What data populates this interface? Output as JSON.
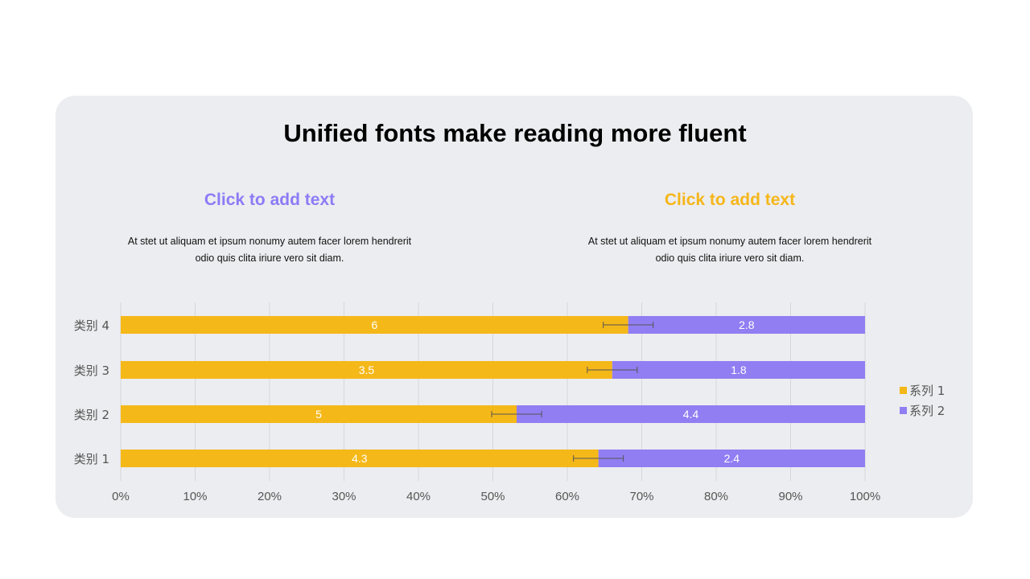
{
  "page": {
    "title": "Unified fonts make reading more fluent",
    "columns": [
      {
        "heading": "Click to add text",
        "heading_color": "#8b7cf6",
        "body_line1": "At stet ut aliquam  et ipsum  nonumy  autem facer lorem hendrerit",
        "body_line2": "odio quis  clita iriure vero sit diam."
      },
      {
        "heading": "Click to add text",
        "heading_color": "#f5b619",
        "body_line1": "At stet ut aliquam  et ipsum  nonumy  autem facer lorem hendrerit",
        "body_line2": "odio quis  clita iriure vero sit diam."
      }
    ]
  },
  "chart_data": {
    "type": "bar",
    "orientation": "horizontal",
    "stacking": "percent",
    "categories": [
      "类别 1",
      "类别 2",
      "类别 3",
      "类别 4"
    ],
    "series": [
      {
        "name": "系列 1",
        "values": [
          4.3,
          5,
          3.5,
          6
        ],
        "color": "#f5b819",
        "error_bars": true
      },
      {
        "name": "系列 2",
        "values": [
          2.4,
          4.4,
          1.8,
          2.8
        ],
        "color": "#917ef2"
      }
    ],
    "x_ticks": [
      "0%",
      "10%",
      "20%",
      "30%",
      "40%",
      "50%",
      "60%",
      "70%",
      "80%",
      "90%",
      "100%"
    ],
    "xlim": [
      0,
      100
    ],
    "grid": true,
    "legend_position": "right"
  }
}
